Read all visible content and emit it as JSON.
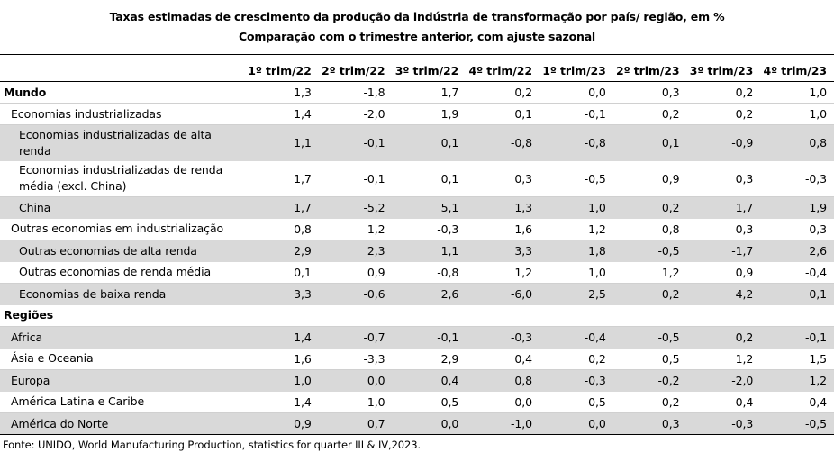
{
  "title": "Taxas estimadas de crescimento da produção da indústria de transformação por país/ região, em %",
  "subtitle": "Comparação com o trimestre anterior, com ajuste sazonal",
  "columns": [
    "",
    "1º trim/22",
    "2º trim/22",
    "3º trim/22",
    "4º trim/22",
    "1º trim/23",
    "2º trim/23",
    "3º trim/23",
    "4º trim/23"
  ],
  "rows": [
    {
      "label": "Mundo",
      "values": [
        "1,3",
        "-1,8",
        "1,7",
        "0,2",
        "0,0",
        "0,3",
        "0,2",
        "1,0"
      ]
    },
    {
      "label": "Economias industrializadas",
      "values": [
        "1,4",
        "-2,0",
        "1,9",
        "0,1",
        "-0,1",
        "0,2",
        "0,2",
        "1,0"
      ]
    },
    {
      "label": "Economias industrializadas de alta renda",
      "values": [
        "1,1",
        "-0,1",
        "0,1",
        "-0,8",
        "-0,8",
        "0,1",
        "-0,9",
        "0,8"
      ]
    },
    {
      "label": "Economias industrializadas de renda média (excl. China)",
      "values": [
        "1,7",
        "-0,1",
        "0,1",
        "0,3",
        "-0,5",
        "0,9",
        "0,3",
        "-0,3"
      ]
    },
    {
      "label": "China",
      "values": [
        "1,7",
        "-5,2",
        "5,1",
        "1,3",
        "1,0",
        "0,2",
        "1,7",
        "1,9"
      ]
    },
    {
      "label": "Outras economias em industrialização",
      "values": [
        "0,8",
        "1,2",
        "-0,3",
        "1,6",
        "1,2",
        "0,8",
        "0,3",
        "0,3"
      ]
    },
    {
      "label": "Outras economias de alta renda",
      "values": [
        "2,9",
        "2,3",
        "1,1",
        "3,3",
        "1,8",
        "-0,5",
        "-1,7",
        "2,6"
      ]
    },
    {
      "label": "Outras economias de renda média",
      "values": [
        "0,1",
        "0,9",
        "-0,8",
        "1,2",
        "1,0",
        "1,2",
        "0,9",
        "-0,4"
      ]
    },
    {
      "label": "Economias de baixa renda",
      "values": [
        "3,3",
        "-0,6",
        "2,6",
        "-6,0",
        "2,5",
        "0,2",
        "4,2",
        "0,1"
      ]
    },
    {
      "label": "Regiões",
      "values": [
        "",
        "",
        "",
        "",
        "",
        "",
        "",
        ""
      ]
    },
    {
      "label": "Africa",
      "values": [
        "1,4",
        "-0,7",
        "-0,1",
        "-0,3",
        "-0,4",
        "-0,5",
        "0,2",
        "-0,1"
      ]
    },
    {
      "label": "Ásia e Oceania",
      "values": [
        "1,6",
        "-3,3",
        "2,9",
        "0,4",
        "0,2",
        "0,5",
        "1,2",
        "1,5"
      ]
    },
    {
      "label": "Europa",
      "values": [
        "1,0",
        "0,0",
        "0,4",
        "0,8",
        "-0,3",
        "-0,2",
        "-2,0",
        "1,2"
      ]
    },
    {
      "label": "América Latina e Caribe",
      "values": [
        "1,4",
        "1,0",
        "0,5",
        "0,0",
        "-0,5",
        "-0,2",
        "-0,4",
        "-0,4"
      ]
    },
    {
      "label": "América do Norte",
      "values": [
        "0,9",
        "0,7",
        "0,0",
        "-1,0",
        "0,0",
        "0,3",
        "-0,3",
        "-0,5"
      ]
    }
  ],
  "source": "Fonte: UNIDO, World Manufacturing Production, statistics for quarter III & IV,2023."
}
